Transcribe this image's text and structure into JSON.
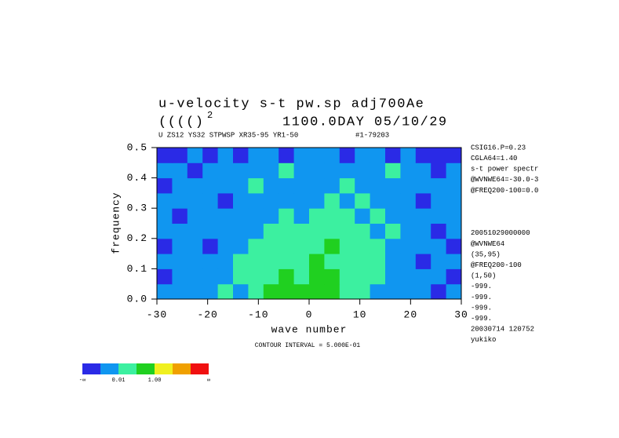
{
  "chart_data": {
    "type": "heatmap",
    "title": "u-velocity s-t pw.sp  adj700Ae",
    "title_line2": "(((()",
    "title_superscript": "2",
    "title_line3": "1100.0DAY 05/10/29",
    "subtitle": "U ZS12 YS32 STPWSP XR35-95 YR1-50",
    "subtitle_right": "#1-79203",
    "xlabel": "wave number",
    "ylabel": "frequency",
    "contour_note": "CONTOUR INTERVAL = 5.000E-01",
    "xlim": [
      -30,
      30
    ],
    "ylim": [
      0,
      0.5
    ],
    "xticks": [
      -30,
      -20,
      -10,
      0,
      10,
      20,
      30
    ],
    "yticks": [
      {
        "value": 0,
        "label": "0.0"
      },
      0.1,
      0.2,
      0.3,
      0.4,
      0.5
    ],
    "x": [
      -28.5,
      -25.5,
      -22.5,
      -19.5,
      -16.5,
      -13.5,
      -10.5,
      -7.5,
      -4.5,
      -1.5,
      1.5,
      4.5,
      7.5,
      10.5,
      13.5,
      16.5,
      19.5,
      22.5,
      25.5,
      28.5
    ],
    "y": [
      0.025,
      0.075,
      0.125,
      0.175,
      0.225,
      0.275,
      0.325,
      0.375,
      0.425,
      0.475
    ],
    "z": [
      [
        1,
        1,
        1,
        1,
        2,
        1,
        2,
        3,
        3,
        3,
        3,
        3,
        2,
        2,
        1,
        1,
        1,
        1,
        0,
        1
      ],
      [
        0,
        1,
        1,
        1,
        1,
        2,
        2,
        2,
        3,
        2,
        3,
        3,
        2,
        2,
        2,
        1,
        1,
        1,
        1,
        0
      ],
      [
        1,
        1,
        1,
        1,
        1,
        2,
        2,
        2,
        2,
        2,
        3,
        2,
        2,
        2,
        2,
        1,
        1,
        0,
        1,
        1
      ],
      [
        0,
        1,
        1,
        0,
        1,
        1,
        2,
        2,
        2,
        2,
        2,
        3,
        2,
        2,
        2,
        1,
        1,
        1,
        1,
        0
      ],
      [
        1,
        1,
        1,
        1,
        1,
        1,
        1,
        2,
        2,
        2,
        2,
        2,
        2,
        2,
        1,
        2,
        1,
        1,
        0,
        1
      ],
      [
        1,
        0,
        1,
        1,
        1,
        1,
        1,
        1,
        2,
        1,
        2,
        2,
        2,
        1,
        2,
        1,
        1,
        1,
        1,
        1
      ],
      [
        1,
        1,
        1,
        1,
        0,
        1,
        1,
        1,
        1,
        1,
        1,
        2,
        1,
        2,
        1,
        1,
        1,
        0,
        1,
        1
      ],
      [
        0,
        1,
        1,
        1,
        1,
        1,
        2,
        1,
        1,
        1,
        1,
        1,
        2,
        1,
        1,
        1,
        1,
        1,
        1,
        1
      ],
      [
        1,
        1,
        0,
        1,
        1,
        1,
        1,
        1,
        2,
        1,
        1,
        1,
        1,
        1,
        1,
        2,
        1,
        1,
        0,
        1
      ],
      [
        0,
        0,
        1,
        0,
        1,
        0,
        1,
        1,
        0,
        1,
        1,
        1,
        0,
        1,
        1,
        0,
        1,
        0,
        0,
        0
      ]
    ],
    "colors": [
      "#2a2ae6",
      "#1096f0",
      "#3cf0a0",
      "#20d020",
      "#f0f020",
      "#f0a000",
      "#f01010"
    ],
    "colorbar_labels": [
      "-∞",
      null,
      "0.01",
      null,
      "1.00",
      null,
      null,
      "∞"
    ],
    "notes": [
      "CSIG16.P=0.23",
      "CGLA64=1.40",
      "s-t power spectr",
      "@WVNWE64=-30.0-3",
      "@FREQ200-100=0.0",
      null,
      null,
      null,
      "20051029000000",
      "@WVNWE64",
      "(35,95)",
      "@FREQ200-100",
      "(1,50)",
      "-999.",
      "-999.",
      "-999.",
      "-999.",
      "20030714 120752",
      "yukiko"
    ]
  }
}
